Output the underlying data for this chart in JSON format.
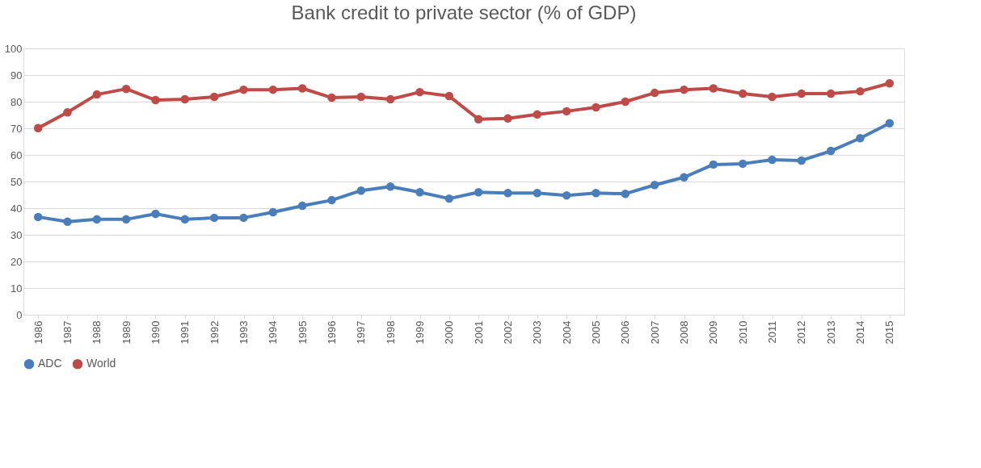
{
  "chart_data": {
    "type": "line",
    "title": "Bank credit to private sector (% of GDP)",
    "categories": [
      "1986",
      "1987",
      "1988",
      "1989",
      "1990",
      "1991",
      "1992",
      "1993",
      "1994",
      "1995",
      "1996",
      "1997",
      "1998",
      "1999",
      "2000",
      "2001",
      "2002",
      "2003",
      "2004",
      "2005",
      "2006",
      "2007",
      "2008",
      "2009",
      "2010",
      "2011",
      "2012",
      "2013",
      "2014",
      "2015"
    ],
    "series": [
      {
        "name": "ADC",
        "color": "#4a7ebb",
        "values": [
          36.7,
          34.9,
          35.8,
          35.8,
          37.9,
          35.8,
          36.4,
          36.4,
          38.5,
          40.9,
          43.0,
          46.6,
          48.1,
          46.0,
          43.6,
          46.0,
          45.7,
          45.7,
          44.8,
          45.7,
          45.4,
          48.7,
          51.6,
          56.4,
          56.7,
          58.2,
          57.9,
          61.5,
          66.3,
          71.9
        ]
      },
      {
        "name": "World",
        "color": "#be4b48",
        "values": [
          70.1,
          76.0,
          82.7,
          84.8,
          80.6,
          80.9,
          81.8,
          84.5,
          84.5,
          85.0,
          81.5,
          81.8,
          80.9,
          83.6,
          82.1,
          73.4,
          73.7,
          75.2,
          76.4,
          77.9,
          80.0,
          83.3,
          84.5,
          85.0,
          83.0,
          81.8,
          83.0,
          83.0,
          83.9,
          86.9
        ]
      }
    ],
    "ylim": [
      0,
      100
    ],
    "yticks": [
      0,
      10,
      20,
      30,
      40,
      50,
      60,
      70,
      80,
      90,
      100
    ],
    "grid": "y",
    "legend": "bottom",
    "marker": "circle",
    "line_style": "solid"
  }
}
